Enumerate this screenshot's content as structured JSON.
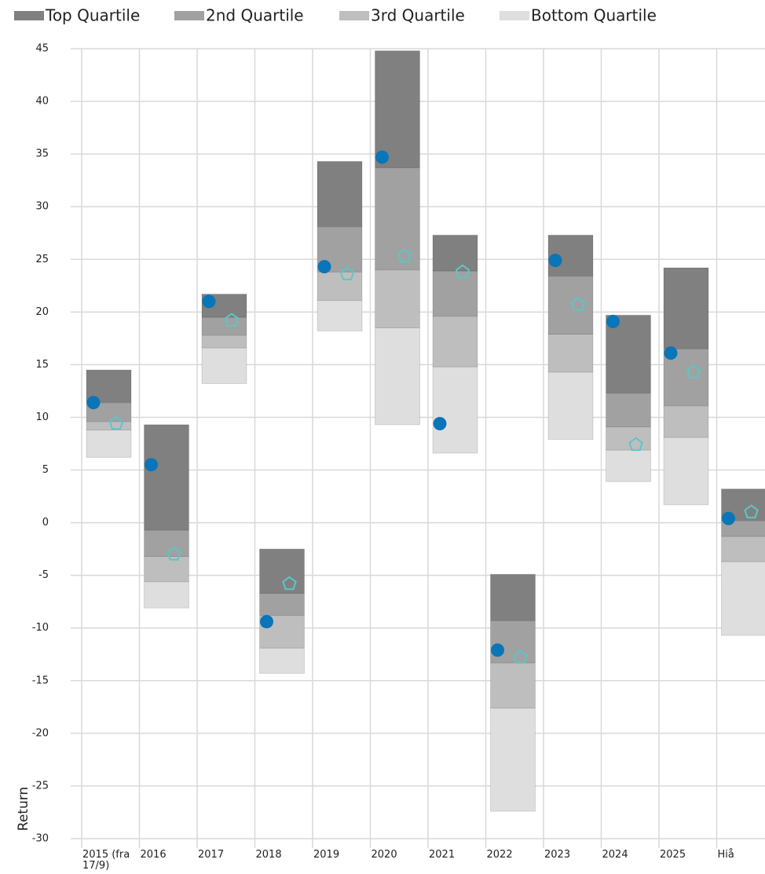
{
  "chart_data": {
    "type": "floating_stacked_bar",
    "categories": [
      "2015 (fra 17/9)",
      "2016",
      "2017",
      "2018",
      "2019",
      "2020",
      "2021",
      "2022",
      "2023",
      "2024",
      "2025",
      "Hiå"
    ],
    "series": [
      {
        "name": "Top Quartile",
        "color": "#808080",
        "values": [
          3.1,
          10.0,
          2.2,
          4.2,
          6.2,
          11.1,
          3.4,
          4.4,
          3.9,
          7.4,
          7.7,
          3.0
        ]
      },
      {
        "name": "2nd Quartile",
        "color": "#a1a1a1",
        "values": [
          1.8,
          2.5,
          1.7,
          2.1,
          4.3,
          9.7,
          4.3,
          4.0,
          5.5,
          3.2,
          5.4,
          1.5
        ]
      },
      {
        "name": "3rd Quartile",
        "color": "#bebebe",
        "values": [
          0.8,
          2.4,
          1.2,
          3.1,
          2.7,
          5.5,
          4.8,
          4.3,
          3.6,
          2.2,
          3.0,
          2.4
        ]
      },
      {
        "name": "Bottom Quartile",
        "color": "#dedede",
        "start": [
          6.2,
          -8.1,
          13.2,
          -14.3,
          18.2,
          9.3,
          6.6,
          -27.4,
          7.9,
          3.9,
          1.7,
          -10.7
        ],
        "values": [
          2.6,
          2.5,
          3.4,
          2.4,
          2.9,
          9.2,
          8.2,
          9.8,
          6.4,
          3.0,
          6.4,
          7.0
        ]
      }
    ],
    "points": [
      {
        "marker": "circle",
        "color": "#0a75b8",
        "values": [
          11.4,
          5.5,
          21.0,
          -9.4,
          24.3,
          34.7,
          9.4,
          -12.1,
          24.9,
          19.1,
          16.1,
          0.4
        ]
      },
      {
        "marker": "pentagon",
        "color": "#5cc6c6",
        "values": [
          9.4,
          -3.0,
          19.2,
          -5.8,
          23.6,
          25.3,
          23.8,
          -12.8,
          20.7,
          7.4,
          14.3,
          1.0
        ]
      }
    ],
    "y_label": "Return",
    "ylim": [
      -30,
      45
    ],
    "yticks": [
      -30,
      -25,
      -20,
      -15,
      -10,
      -5,
      0,
      5,
      10,
      15,
      20,
      25,
      30,
      35,
      40,
      45
    ],
    "grid": true,
    "legend": "top"
  }
}
